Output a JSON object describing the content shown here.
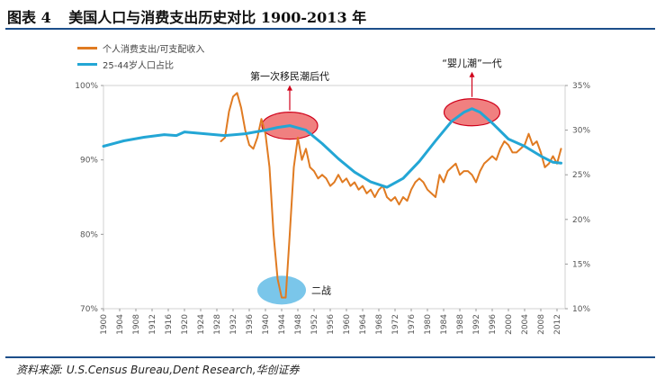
{
  "header": {
    "figure_label": "图表 4",
    "title": "美国人口与消费支出历史对比 1900-2013 年"
  },
  "source": "资料来源: U.S.Census Bureau,Dent Research,华创证券",
  "colors": {
    "consumption": "#e07b22",
    "population": "#23a6d5",
    "highlight_red": "#f08080",
    "highlight_blue": "#7ac6ea",
    "rule": "#1c4e8a"
  },
  "chart_data": {
    "type": "line",
    "title": "美国人口与消费支出历史对比 1900-2013 年",
    "x_ticks": [
      "1900",
      "1904",
      "1908",
      "1912",
      "1916",
      "1920",
      "1924",
      "1928",
      "1932",
      "1936",
      "1940",
      "1944",
      "1948",
      "1952",
      "1956",
      "1960",
      "1964",
      "1968",
      "1972",
      "1976",
      "1980",
      "1984",
      "1988",
      "1992",
      "1996",
      "2000",
      "2004",
      "2008",
      "2012"
    ],
    "xlim": [
      1900,
      2014
    ],
    "left_axis": {
      "ylim": [
        70,
        100
      ],
      "ticks": [
        "70%",
        "80%",
        "90%",
        "100%"
      ],
      "tick_values": [
        70,
        80,
        90,
        100
      ]
    },
    "right_axis": {
      "ylim": [
        10,
        35
      ],
      "ticks": [
        "10%",
        "15%",
        "20%",
        "25%",
        "30%",
        "35%"
      ],
      "tick_values": [
        10,
        15,
        20,
        25,
        30,
        35
      ]
    },
    "legend_position": "top-left",
    "series": [
      {
        "name": "个人消费支出/可支配收入",
        "axis": "left",
        "color": "#e07b22",
        "points": [
          [
            1929,
            92.5
          ],
          [
            1930,
            93.0
          ],
          [
            1931,
            96.5
          ],
          [
            1932,
            98.5
          ],
          [
            1933,
            99.0
          ],
          [
            1934,
            97.0
          ],
          [
            1935,
            94.0
          ],
          [
            1936,
            92.0
          ],
          [
            1937,
            91.5
          ],
          [
            1938,
            93.0
          ],
          [
            1939,
            95.5
          ],
          [
            1940,
            93.5
          ],
          [
            1941,
            89.0
          ],
          [
            1942,
            80.0
          ],
          [
            1943,
            74.0
          ],
          [
            1944,
            71.5
          ],
          [
            1945,
            71.5
          ],
          [
            1946,
            80.0
          ],
          [
            1947,
            89.0
          ],
          [
            1948,
            93.0
          ],
          [
            1949,
            90.0
          ],
          [
            1950,
            91.5
          ],
          [
            1951,
            89.0
          ],
          [
            1952,
            88.5
          ],
          [
            1953,
            87.5
          ],
          [
            1954,
            88.0
          ],
          [
            1955,
            87.5
          ],
          [
            1956,
            86.5
          ],
          [
            1957,
            87.0
          ],
          [
            1958,
            88.0
          ],
          [
            1959,
            87.0
          ],
          [
            1960,
            87.5
          ],
          [
            1961,
            86.5
          ],
          [
            1962,
            87.0
          ],
          [
            1963,
            86.0
          ],
          [
            1964,
            86.5
          ],
          [
            1965,
            85.5
          ],
          [
            1966,
            86.0
          ],
          [
            1967,
            85.0
          ],
          [
            1968,
            86.0
          ],
          [
            1969,
            86.5
          ],
          [
            1970,
            85.0
          ],
          [
            1971,
            84.5
          ],
          [
            1972,
            85.0
          ],
          [
            1973,
            84.0
          ],
          [
            1974,
            85.0
          ],
          [
            1975,
            84.5
          ],
          [
            1976,
            86.0
          ],
          [
            1977,
            87.0
          ],
          [
            1978,
            87.5
          ],
          [
            1979,
            87.0
          ],
          [
            1980,
            86.0
          ],
          [
            1981,
            85.5
          ],
          [
            1982,
            85.0
          ],
          [
            1983,
            88.0
          ],
          [
            1984,
            87.0
          ],
          [
            1985,
            88.5
          ],
          [
            1986,
            89.0
          ],
          [
            1987,
            89.5
          ],
          [
            1988,
            88.0
          ],
          [
            1989,
            88.5
          ],
          [
            1990,
            88.5
          ],
          [
            1991,
            88.0
          ],
          [
            1992,
            87.0
          ],
          [
            1993,
            88.5
          ],
          [
            1994,
            89.5
          ],
          [
            1995,
            90.0
          ],
          [
            1996,
            90.5
          ],
          [
            1997,
            90.0
          ],
          [
            1998,
            91.5
          ],
          [
            1999,
            92.5
          ],
          [
            2000,
            92.0
          ],
          [
            2001,
            91.0
          ],
          [
            2002,
            91.0
          ],
          [
            2003,
            91.5
          ],
          [
            2004,
            92.0
          ],
          [
            2005,
            93.5
          ],
          [
            2006,
            92.0
          ],
          [
            2007,
            92.5
          ],
          [
            2008,
            91.0
          ],
          [
            2009,
            89.0
          ],
          [
            2010,
            89.5
          ],
          [
            2011,
            90.5
          ],
          [
            2012,
            89.5
          ],
          [
            2013,
            91.5
          ]
        ]
      },
      {
        "name": "25-44岁人口占比",
        "axis": "right",
        "color": "#23a6d5",
        "points": [
          [
            1900,
            28.2
          ],
          [
            1905,
            28.8
          ],
          [
            1910,
            29.2
          ],
          [
            1915,
            29.5
          ],
          [
            1918,
            29.4
          ],
          [
            1920,
            29.8
          ],
          [
            1925,
            29.6
          ],
          [
            1930,
            29.4
          ],
          [
            1935,
            29.6
          ],
          [
            1940,
            30.0
          ],
          [
            1943,
            30.3
          ],
          [
            1946,
            30.5
          ],
          [
            1950,
            30.0
          ],
          [
            1954,
            28.5
          ],
          [
            1958,
            26.8
          ],
          [
            1962,
            25.3
          ],
          [
            1966,
            24.2
          ],
          [
            1970,
            23.6
          ],
          [
            1974,
            24.6
          ],
          [
            1978,
            26.5
          ],
          [
            1982,
            28.8
          ],
          [
            1986,
            31.0
          ],
          [
            1989,
            32.0
          ],
          [
            1991,
            32.4
          ],
          [
            1993,
            32.0
          ],
          [
            1996,
            30.8
          ],
          [
            2000,
            29.0
          ],
          [
            2004,
            28.2
          ],
          [
            2008,
            27.1
          ],
          [
            2011,
            26.4
          ],
          [
            2013,
            26.3
          ]
        ]
      }
    ],
    "annotations": [
      {
        "text": "第一次移民潮后代",
        "x": 1946,
        "y": 30.5,
        "axis": "right",
        "shape": "ellipse",
        "color": "red",
        "label_position": "above",
        "arrow": true
      },
      {
        "text": "“婴儿潮”一代",
        "x": 1991,
        "y": 32.0,
        "axis": "right",
        "shape": "ellipse",
        "color": "red",
        "label_position": "above",
        "arrow": true
      },
      {
        "text": "二战",
        "x": 1944,
        "y": 72.5,
        "axis": "left",
        "shape": "ellipse",
        "color": "blue",
        "label_position": "right",
        "arrow": false
      }
    ]
  }
}
